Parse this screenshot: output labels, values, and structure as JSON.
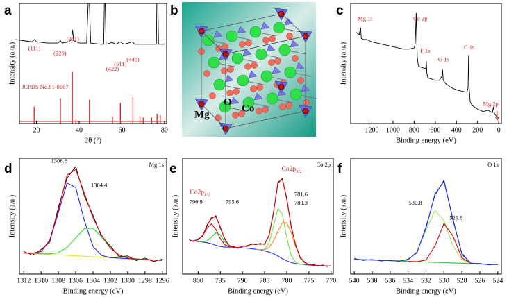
{
  "structure": {
    "panel": "b",
    "labels": [
      "Mg",
      "O",
      "Co"
    ]
  },
  "chart_data": [
    {
      "type": "line",
      "panel": "a",
      "xlabel": "2θ (°)",
      "ylabel": "Intensity (a.u.)",
      "xlim": [
        12,
        81
      ],
      "xticks": [
        20,
        40,
        60,
        80
      ],
      "ylim": [
        0,
        100
      ],
      "x": [
        10,
        14,
        18,
        19,
        20,
        25,
        30,
        31.2,
        32,
        35,
        36.5,
        36.9,
        37.5,
        40,
        43.5,
        44.2,
        44.8,
        45.4,
        50,
        51.5,
        51.8,
        52.2,
        52.6,
        55.6,
        57,
        59.3,
        61,
        65,
        66,
        70,
        75,
        76.2,
        76.4,
        76.9,
        77.2,
        80
      ],
      "series": [
        {
          "color": "#000000",
          "values": [
            70,
            69,
            68,
            70,
            68,
            67,
            67,
            69,
            67,
            68,
            70,
            78,
            69,
            67,
            67,
            100,
            100,
            67,
            66,
            66,
            100,
            100,
            66,
            67.5,
            66,
            68,
            66,
            68,
            66,
            66,
            66,
            66,
            100,
            100,
            66,
            66
          ]
        },
        {
          "color": "#e02020",
          "style": "stick",
          "x": [
            18.9,
            31.2,
            36.8,
            38.5,
            44.8,
            55.6,
            59.3,
            65.2,
            68.5,
            70,
            74,
            76.5,
            78
          ],
          "values": [
            14,
            21,
            43,
            4,
            20,
            6,
            17,
            22,
            6,
            5,
            5,
            8,
            7
          ]
        }
      ],
      "annotations": [
        {
          "text": "(111)",
          "x": 19,
          "y": 62,
          "color": "#e02020"
        },
        {
          "text": "(220)",
          "x": 31,
          "y": 58,
          "color": "#e02020"
        },
        {
          "text": "(311)",
          "x": 37,
          "y": 70,
          "color": "#e02020"
        },
        {
          "text": "(422)",
          "x": 55.6,
          "y": 45,
          "color": "#e02020"
        },
        {
          "text": "(511)",
          "x": 59.3,
          "y": 49,
          "color": "#e02020"
        },
        {
          "text": "(440)",
          "x": 65.2,
          "y": 53,
          "color": "#e02020"
        },
        {
          "text": "JCPDS No.81-0667",
          "x": 13,
          "y": 30,
          "color": "#e02020",
          "anchor": "start"
        }
      ]
    },
    {
      "type": "line",
      "panel": "c",
      "xlabel": "Binding energy (eV)",
      "ylabel": "Intensity (a.u.)",
      "xlim": [
        1400,
        -25
      ],
      "xticks": [
        1200,
        1000,
        800,
        600,
        400,
        200,
        0
      ],
      "ylim": [
        0,
        100
      ],
      "x": [
        1350,
        1320,
        1306,
        1300,
        1280,
        1250,
        1200,
        1150,
        1100,
        1050,
        1000,
        950,
        900,
        850,
        800,
        790,
        780,
        775,
        770,
        760,
        740,
        700,
        690,
        685,
        680,
        670,
        600,
        560,
        535,
        531,
        525,
        500,
        450,
        400,
        350,
        300,
        290,
        285,
        280,
        270,
        250,
        200,
        150,
        100,
        60,
        50,
        40,
        20,
        0
      ],
      "series": [
        {
          "color": "#000000",
          "values": [
            76,
            74,
            80,
            71,
            70,
            70,
            68,
            67,
            66,
            65,
            64,
            63,
            62,
            62,
            63,
            66,
            92,
            70,
            55,
            48,
            47,
            46,
            46,
            52,
            42,
            38,
            36,
            36,
            40,
            45,
            36,
            33,
            30,
            28,
            27,
            26,
            30,
            57,
            30,
            18,
            15,
            12,
            10,
            11,
            9,
            14,
            8,
            6,
            5
          ]
        }
      ],
      "annotations": [
        {
          "text": "Mg 1s",
          "x": 1334,
          "y": 87,
          "color": "#e02020",
          "anchor": "start"
        },
        {
          "text": "Co 2p",
          "x": 809,
          "y": 87,
          "color": "#e02020",
          "anchor": "start"
        },
        {
          "text": "F 1s",
          "x": 743,
          "y": 60,
          "color": "#e02020",
          "anchor": "start"
        },
        {
          "text": "O 1s",
          "x": 573,
          "y": 53,
          "color": "#e02020",
          "anchor": "start"
        },
        {
          "text": "C 1s",
          "x": 330,
          "y": 63,
          "color": "#e02020",
          "anchor": "start"
        },
        {
          "text": "Mg 2p",
          "x": 150,
          "y": 16,
          "color": "#e02020",
          "anchor": "start"
        }
      ]
    },
    {
      "type": "line",
      "panel": "d",
      "corner_label": "Mg 1s",
      "xlabel": "Binding energy (eV)",
      "ylabel": "Intensity (a.u.)",
      "xlim": [
        1312.5,
        1295.5
      ],
      "xticks": [
        1312,
        1310,
        1308,
        1306,
        1304,
        1302,
        1300,
        1298,
        1296
      ],
      "ylim": [
        0,
        110
      ],
      "x": [
        1312,
        1311,
        1310,
        1309,
        1308,
        1307,
        1306,
        1305,
        1304,
        1303,
        1302,
        1301,
        1300,
        1299,
        1298,
        1297,
        1296
      ],
      "series": [
        {
          "color": "#000000",
          "values": [
            21.5,
            18.0,
            23.4,
            30.1,
            63.5,
            91.2,
            102.0,
            74.0,
            55.8,
            34.9,
            26.7,
            16.5,
            17.2,
            12.8,
            15.1,
            12.0,
            14.2
          ]
        },
        {
          "color": "#e8e820",
          "values": [
            20.0,
            19.6,
            19.1,
            18.7,
            18.2,
            17.8,
            17.4,
            16.9,
            16.5,
            16.1,
            15.6,
            15.2,
            14.7,
            14.3,
            13.9,
            13.4,
            13.0
          ]
        },
        {
          "color": "#2020ff",
          "values": [
            20.0,
            19.8,
            21.5,
            31.8,
            58.5,
            86.5,
            82.2,
            50.7,
            26.2,
            17.7,
            15.7,
            15.2,
            14.7,
            14.3,
            13.9,
            13.4,
            13.0
          ]
        },
        {
          "color": "#22dd22",
          "values": [
            20.0,
            19.6,
            19.2,
            19.2,
            20.4,
            25.3,
            34.4,
            43.0,
            43.6,
            35.2,
            24.7,
            18.1,
            15.3,
            14.4,
            13.9,
            13.4,
            13.0
          ]
        },
        {
          "color": "#e00000",
          "values": [
            20.0,
            19.8,
            21.6,
            32.3,
            60.7,
            94.0,
            99.2,
            76.8,
            53.3,
            36.8,
            24.8,
            18.1,
            15.3,
            14.4,
            13.9,
            13.4,
            13.0
          ]
        }
      ],
      "annotations": [
        {
          "text": "1306.6",
          "x": 1307.9,
          "y": 107
        },
        {
          "text": "1304.4",
          "x": 1303.3,
          "y": 84
        }
      ]
    },
    {
      "type": "line",
      "panel": "e",
      "corner_label": "Co 2p",
      "xlabel": "Binding energy (eV)",
      "ylabel": "Intensity (a.u.)",
      "xlim": [
        803.5,
        769.5
      ],
      "xticks": [
        800,
        795,
        790,
        785,
        780,
        775,
        770
      ],
      "ylim": [
        0,
        105
      ],
      "x": [
        802,
        801,
        800,
        799,
        798,
        797,
        796,
        795,
        794,
        793,
        792,
        791,
        790,
        789,
        788,
        787,
        786,
        785,
        784,
        783,
        782,
        781,
        780,
        779,
        778,
        777,
        776,
        775,
        774,
        773,
        772,
        771,
        770
      ],
      "series": [
        {
          "color": "#000000",
          "values": [
            31.2,
            29.4,
            32.0,
            34.1,
            44.5,
            50.2,
            53.0,
            41.6,
            32.3,
            25.2,
            25.1,
            23.3,
            25.6,
            25.0,
            27.5,
            26.6,
            27.8,
            26.9,
            35.6,
            55.1,
            83.5,
            85.8,
            68.9,
            42.5,
            26.8,
            14.6,
            11.2,
            8.1,
            8.9,
            7.1,
            8.3,
            6.9,
            7.6
          ]
        },
        {
          "color": "#2030ff",
          "values": [
            30,
            30,
            29.5,
            29,
            28.5,
            27.5,
            26,
            25,
            24.5,
            24.5,
            24.3,
            24,
            23.8,
            23.5,
            23,
            22.5,
            22,
            21,
            20,
            18.5,
            16.5,
            14,
            12,
            10.5,
            9.5,
            9,
            8.5,
            8.2,
            8,
            7.8,
            7.6,
            7.4,
            7.2
          ]
        },
        {
          "color": "#c00000",
          "x": [
            801,
            800,
            799,
            798,
            797,
            796,
            795,
            794,
            793,
            792
          ],
          "values": [
            30.2,
            31.1,
            34.8,
            41.7,
            45.4,
            40.6,
            32.2,
            26.6,
            24.9,
            24.3
          ]
        },
        {
          "color": "#30c030",
          "x": [
            800,
            799,
            798,
            797,
            796,
            795,
            794,
            793,
            792,
            791
          ],
          "values": [
            29.5,
            29.2,
            30.1,
            33.6,
            37.4,
            35.6,
            29.4,
            25.6,
            24.4,
            24
          ]
        },
        {
          "color": "#70e040",
          "x": [
            786,
            785,
            784,
            783,
            782,
            781,
            780,
            779,
            778,
            777,
            776
          ],
          "values": [
            22,
            22.5,
            28.2,
            43.7,
            59.4,
            54.5,
            33.1,
            16.6,
            10.5,
            9,
            8.5
          ]
        },
        {
          "color": "#ff8a20",
          "x": [
            787,
            786,
            785,
            784,
            783,
            782,
            781,
            780,
            779,
            778,
            777,
            776,
            775,
            774,
            773
          ],
          "values": [
            22.5,
            22.2,
            22.2,
            24.2,
            29.9,
            38.9,
            46.4,
            46.5,
            37.5,
            25.0,
            15.5,
            10.5,
            8.7,
            8,
            7.8
          ]
        },
        {
          "color": "#e00000",
          "values": [
            30,
            30.2,
            31.1,
            35.0,
            43.3,
            51.5,
            52.0,
            42.8,
            31.5,
            26.0,
            24.4,
            24,
            24.9,
            25.8,
            26.8,
            27.3,
            27.0,
            27.5,
            34.7,
            56.2,
            82.2,
            86.9,
            67.6,
            43.6,
            26.0,
            15.5,
            10.5,
            8.7,
            8,
            7.8,
            7.6,
            7.4,
            7.2
          ]
        }
      ],
      "annotations": [
        {
          "text": "Co2p",
          "sub": "1/2",
          "x": 799.6,
          "y": 74,
          "color": "#e02020"
        },
        {
          "text": "Co2p",
          "sub": "3/2",
          "x": 778.9,
          "y": 95,
          "color": "#e02020"
        },
        {
          "text": "796.9",
          "x": 800.5,
          "y": 65
        },
        {
          "text": "795.6",
          "x": 792.3,
          "y": 65
        },
        {
          "text": "781.6",
          "x": 778.3,
          "y": 72,
          "anchor": "start"
        },
        {
          "text": "780.3",
          "x": 778.3,
          "y": 64,
          "anchor": "start"
        }
      ]
    },
    {
      "type": "line",
      "panel": "f",
      "corner_label": "O 1s",
      "xlabel": "Binding energy (eV)",
      "ylabel": "Intensity (a.u.)",
      "xlim": [
        540.4,
        523.6
      ],
      "xticks": [
        540,
        538,
        536,
        534,
        532,
        530,
        528,
        526,
        524
      ],
      "ylim": [
        0,
        110
      ],
      "x": [
        540,
        539,
        538,
        537,
        536,
        535,
        534,
        533,
        532,
        531,
        530,
        529,
        528,
        527,
        526,
        525,
        524
      ],
      "series": [
        {
          "color": "#000000",
          "values": [
            14.8,
            13.1,
            13.9,
            12.5,
            13.3,
            12.0,
            14.2,
            20.3,
            44.9,
            75.0,
            89.1,
            51.2,
            19.6,
            10.0,
            10.1,
            8.8,
            9.4
          ]
        },
        {
          "color": "#30c030",
          "values": [
            14.0,
            13.7,
            13.4,
            13.1,
            12.8,
            12.4,
            12.1,
            11.8,
            11.5,
            11.2,
            10.9,
            10.6,
            10.3,
            9.9,
            9.6,
            9.3,
            9.0
          ]
        },
        {
          "color": "#90f060",
          "x": [
            536,
            535,
            534,
            533,
            532,
            531,
            530,
            529,
            528,
            527,
            526
          ],
          "values": [
            12.8,
            12.5,
            13.5,
            21.1,
            41.8,
            60.5,
            50.9,
            26.8,
            13.6,
            10.2,
            9.6
          ]
        },
        {
          "color": "#e00000",
          "x": [
            534,
            533,
            532,
            531,
            530,
            529,
            528,
            527,
            526
          ],
          "values": [
            12.1,
            11.8,
            13.4,
            26.8,
            48.0,
            36.2,
            15.4,
            10.2,
            9.6
          ]
        },
        {
          "color": "#2030ff",
          "values": [
            14.0,
            13.7,
            13.4,
            13.1,
            12.8,
            12.5,
            13.5,
            21.1,
            43.7,
            76.1,
            88.0,
            52.4,
            18.7,
            10.5,
            9.6,
            9.3,
            9.0
          ]
        }
      ],
      "annotations": [
        {
          "text": "530.8",
          "x": 533.2,
          "y": 67
        },
        {
          "text": "529.8",
          "x": 529.4,
          "y": 53,
          "anchor": "start"
        }
      ]
    }
  ]
}
